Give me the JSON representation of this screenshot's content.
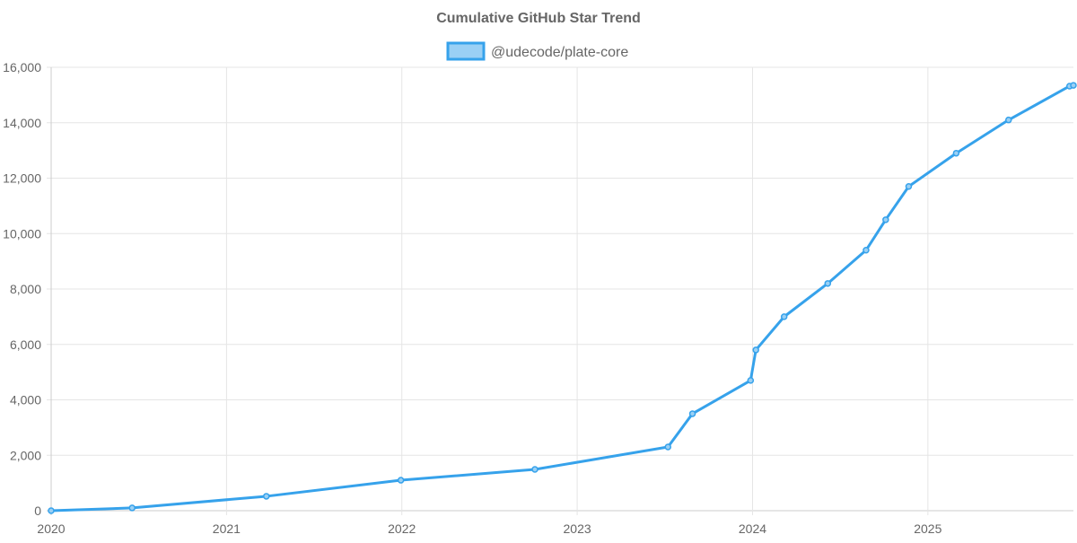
{
  "chart_data": {
    "type": "line",
    "title": "Cumulative GitHub Star Trend",
    "xlabel": "",
    "ylabel": "",
    "legend_position": "top",
    "grid": true,
    "xlim": [
      "2020-01-01",
      "2025-10-31"
    ],
    "ylim": [
      0,
      16000
    ],
    "x_ticks": [
      "2020",
      "2021",
      "2022",
      "2023",
      "2024",
      "2025"
    ],
    "y_ticks": [
      "0",
      "2,000",
      "4,000",
      "6,000",
      "8,000",
      "10,000",
      "12,000",
      "14,000",
      "16,000"
    ],
    "series": [
      {
        "name": "@udecode/plate-core",
        "color": "#36a2eb",
        "fill": "#9ad0f5",
        "x": [
          "2020-01-01",
          "2020-06-18",
          "2021-03-25",
          "2021-12-30",
          "2022-10-05",
          "2023-07-09",
          "2023-08-29",
          "2023-12-28",
          "2024-01-08",
          "2024-03-07",
          "2024-06-06",
          "2024-08-25",
          "2024-10-05",
          "2024-11-22",
          "2025-03-01",
          "2025-06-18",
          "2025-10-23",
          "2025-10-31"
        ],
        "y": [
          0,
          100,
          520,
          1100,
          1490,
          2300,
          3500,
          4700,
          5800,
          7000,
          8200,
          9400,
          10500,
          11700,
          12900,
          14100,
          15320,
          15350
        ]
      }
    ]
  }
}
